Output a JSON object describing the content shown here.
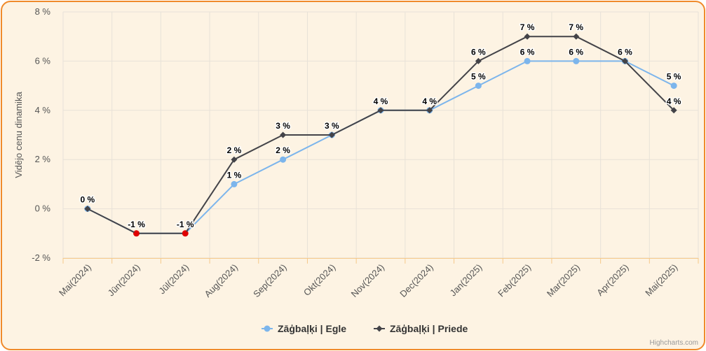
{
  "chart_data": {
    "type": "line",
    "title": "",
    "xlabel": "",
    "ylabel": "Vidējo cenu dinamika",
    "categories": [
      "Mai(2024)",
      "Jūn(2024)",
      "Jūl(2024)",
      "Aug(2024)",
      "Sep(2024)",
      "Okt(2024)",
      "Nov(2024)",
      "Dec(2024)",
      "Jan(2025)",
      "Feb(2025)",
      "Mar(2025)",
      "Apr(2025)",
      "Mai(2025)"
    ],
    "ylim": [
      -2,
      8
    ],
    "yticks": [
      -2,
      0,
      2,
      4,
      6,
      8
    ],
    "ytick_labels": [
      "-2 %",
      "0 %",
      "2 %",
      "4 %",
      "6 %",
      "8 %"
    ],
    "grid": true,
    "legend_position": "bottom",
    "series": [
      {
        "name": "Zāģbaļķi | Egle",
        "color": "#7cb5ec",
        "marker": "circle",
        "values": [
          0,
          -1,
          -1,
          1,
          2,
          3,
          4,
          4,
          5,
          6,
          6,
          6,
          5
        ],
        "labels": [
          "0 %",
          "-1 %",
          "-1 %",
          "1 %",
          "2 %",
          "3 %",
          "4 %",
          "4 %",
          "5 %",
          "6 %",
          "6 %",
          "6 %",
          "5 %"
        ]
      },
      {
        "name": "Zāģbaļķi | Priede",
        "color": "#434348",
        "marker": "diamond",
        "values": [
          0,
          -1,
          -1,
          2,
          3,
          3,
          4,
          4,
          6,
          7,
          7,
          6,
          4
        ],
        "labels": [
          "0 %",
          "-1 %",
          "-1 %",
          "2 %",
          "3 %",
          "3 %",
          "4 %",
          "4 %",
          "6 %",
          "7 %",
          "7 %",
          "6 %",
          "4 %"
        ]
      }
    ],
    "negative_point_color": "#e00000"
  },
  "credits": "Highcharts.com"
}
